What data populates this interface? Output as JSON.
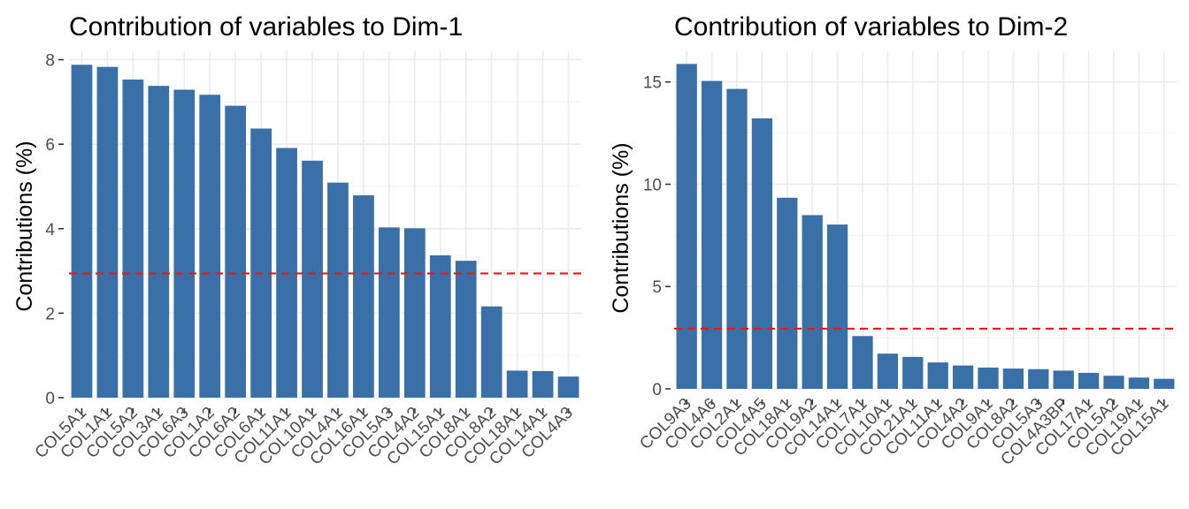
{
  "colors": {
    "bar": "#3A70A8",
    "reference_line": "#E41A1C"
  },
  "chart_data": [
    {
      "type": "bar",
      "title": "Contribution of variables to Dim-1",
      "xlabel": "",
      "ylabel": "Contributions (%)",
      "categories": [
        "COL5A1",
        "COL1A1",
        "COL5A2",
        "COL3A1",
        "COL6A3",
        "COL1A2",
        "COL6A2",
        "COL6A1",
        "COL11A1",
        "COL10A1",
        "COL4A1",
        "COL16A1",
        "COL5A3",
        "COL4A2",
        "COL15A1",
        "COL8A1",
        "COL8A2",
        "COL18A1",
        "COL14A1",
        "COL4A3"
      ],
      "values": [
        7.88,
        7.83,
        7.53,
        7.38,
        7.29,
        7.17,
        6.91,
        6.37,
        5.91,
        5.61,
        5.09,
        4.79,
        4.03,
        4.01,
        3.37,
        3.24,
        2.16,
        0.64,
        0.63,
        0.5
      ],
      "reference_line": 2.94,
      "ylim": [
        0,
        8.2
      ],
      "yticks": [
        0,
        2,
        4,
        6,
        8
      ],
      "ytick_labels": [
        "0",
        "2",
        "4",
        "6",
        "8"
      ],
      "grid": true
    },
    {
      "type": "bar",
      "title": "Contribution of variables to Dim-2",
      "xlabel": "",
      "ylabel": "Contributions (%)",
      "categories": [
        "COL9A3",
        "COL4A6",
        "COL2A1",
        "COL4A5",
        "COL18A1",
        "COL9A2",
        "COL14A1",
        "COL7A1",
        "COL10A1",
        "COL21A1",
        "COL11A1",
        "COL4A2",
        "COL9A1",
        "COL8A2",
        "COL5A3",
        "COL4A3BP",
        "COL17A1",
        "COL5A2",
        "COL19A1",
        "COL15A1"
      ],
      "values": [
        15.88,
        15.05,
        14.66,
        13.22,
        9.34,
        8.49,
        8.03,
        2.58,
        1.72,
        1.56,
        1.29,
        1.14,
        1.04,
        0.99,
        0.96,
        0.89,
        0.78,
        0.64,
        0.55,
        0.49
      ],
      "reference_line": 2.94,
      "ylim": [
        0,
        16.5
      ],
      "yticks": [
        0,
        5,
        10,
        15
      ],
      "ytick_labels": [
        "0",
        "5",
        "10",
        "15"
      ],
      "grid": true
    }
  ]
}
